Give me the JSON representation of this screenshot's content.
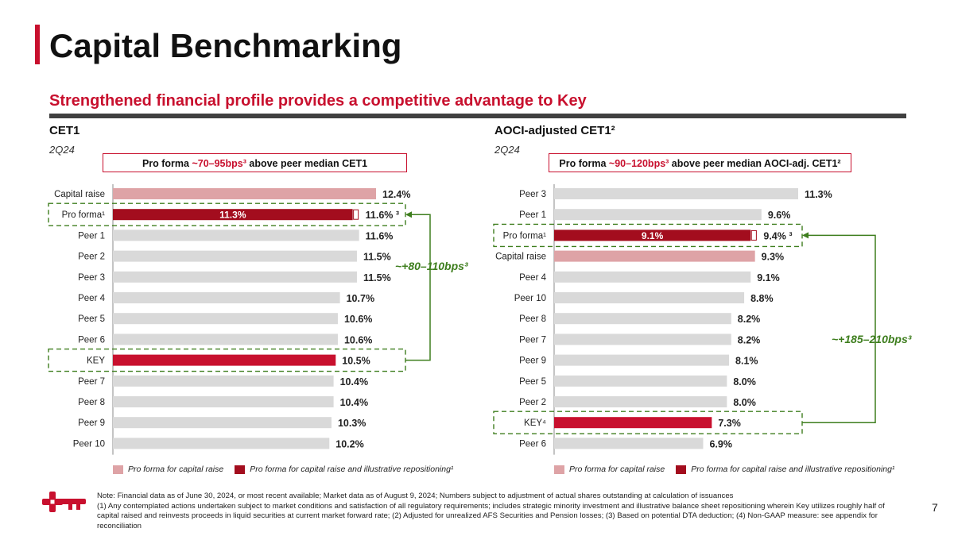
{
  "header": {
    "title": "Capital Benchmarking",
    "subtitle": "Strengthened financial profile provides a competitive advantage to Key"
  },
  "colors": {
    "brand_red": "#c8102e",
    "dark_red": "#a30d1e",
    "light_red": "#dea3a6",
    "peer_gray": "#d9d9d9",
    "bracket_green": "#3e7e1e"
  },
  "left_panel": {
    "title": "CET1",
    "period": "2Q24",
    "callout_pre": "Pro forma ",
    "callout_hl": "~70–95bps³",
    "callout_post": " above peer median CET1",
    "bracket_label": "~+80–110bps³",
    "legend_light": "Pro forma for capital raise",
    "legend_dark": "Pro forma for capital raise and illustrative repositioning¹"
  },
  "right_panel": {
    "title": "AOCI-adjusted CET1²",
    "period": "2Q24",
    "callout_pre": "Pro forma ",
    "callout_hl": "~90–120bps³",
    "callout_post": " above peer median AOCI-adj. CET1²",
    "bracket_label": "~+185–210bps³",
    "legend_light": "Pro forma for capital raise",
    "legend_dark": "Pro forma for capital raise and illustrative repositioning¹"
  },
  "chart_data": [
    {
      "type": "bar",
      "orientation": "horizontal",
      "title": "CET1",
      "subtitle": "2Q24",
      "categories": [
        "Capital raise",
        "Pro forma¹",
        "Peer 1",
        "Peer 2",
        "Peer 3",
        "Peer 4",
        "Peer 5",
        "Peer 6",
        "KEY",
        "Peer 7",
        "Peer 8",
        "Peer 9",
        "Peer 10"
      ],
      "values": [
        12.4,
        11.6,
        11.6,
        11.5,
        11.5,
        10.7,
        10.6,
        10.6,
        10.5,
        10.4,
        10.4,
        10.3,
        10.2
      ],
      "value_labels": [
        "12.4%",
        "11.6% ³",
        "11.6%",
        "11.5%",
        "11.5%",
        "10.7%",
        "10.6%",
        "10.6%",
        "10.5%",
        "10.4%",
        "10.4%",
        "10.3%",
        "10.2%"
      ],
      "bar_kinds": [
        "light",
        "proforma",
        "peer",
        "peer",
        "peer",
        "peer",
        "peer",
        "peer",
        "key",
        "peer",
        "peer",
        "peer",
        "peer"
      ],
      "inner_value": 11.3,
      "inner_label": "11.3%",
      "highlight_rows": [
        1,
        8
      ],
      "x_range": [
        0,
        12.4
      ]
    },
    {
      "type": "bar",
      "orientation": "horizontal",
      "title": "AOCI-adjusted CET1²",
      "subtitle": "2Q24",
      "categories": [
        "Peer 3",
        "Peer 1",
        "Pro forma¹",
        "Capital raise",
        "Peer 4",
        "Peer 10",
        "Peer 8",
        "Peer 7",
        "Peer 9",
        "Peer 5",
        "Peer 2",
        "KEY⁴",
        "Peer 6"
      ],
      "values": [
        11.3,
        9.6,
        9.4,
        9.3,
        9.1,
        8.8,
        8.2,
        8.2,
        8.1,
        8.0,
        8.0,
        7.3,
        6.9
      ],
      "value_labels": [
        "11.3%",
        "9.6%",
        "9.4% ³",
        "9.3%",
        "9.1%",
        "8.8%",
        "8.2%",
        "8.2%",
        "8.1%",
        "8.0%",
        "8.0%",
        "7.3%",
        "6.9%"
      ],
      "bar_kinds": [
        "peer",
        "peer",
        "proforma",
        "light",
        "peer",
        "peer",
        "peer",
        "peer",
        "peer",
        "peer",
        "peer",
        "key",
        "peer"
      ],
      "inner_value": 9.1,
      "inner_label": "9.1%",
      "highlight_rows": [
        2,
        11
      ],
      "x_range": [
        0,
        11.3
      ]
    }
  ],
  "footer": {
    "note_line": "Note: Financial data as of June 30, 2024, or most recent available; Market data as of August 9, 2024; Numbers subject to adjustment of actual shares outstanding at calculation of issuances",
    "note_detail": "(1) Any contemplated actions undertaken subject to market conditions and satisfaction of all regulatory requirements; includes strategic minority investment and illustrative balance sheet repositioning wherein Key utilizes roughly half of capital raised and reinvests proceeds in liquid securities at current market forward rate; (2) Adjusted for unrealized AFS Securities and Pension losses; (3) Based on potential DTA deduction; (4) Non-GAAP measure: see appendix for reconciliation",
    "page_number": "7",
    "logo_icon": "key-logo-icon"
  }
}
